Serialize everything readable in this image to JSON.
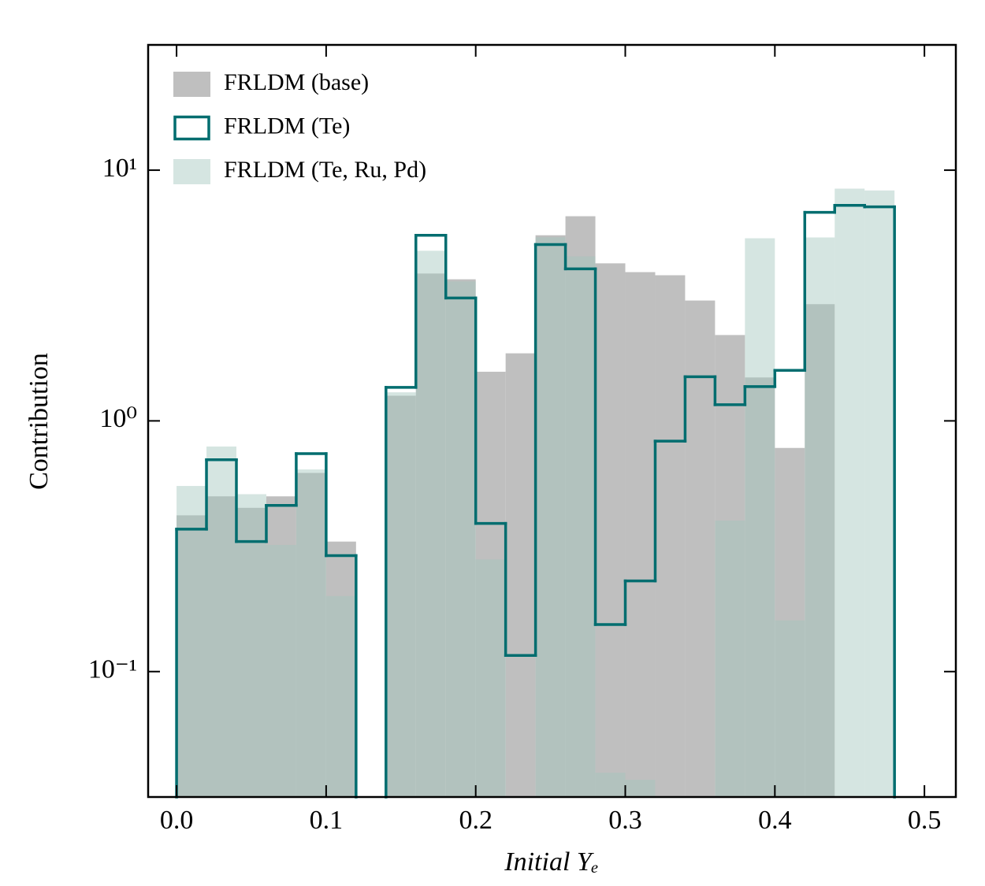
{
  "chart_data": {
    "type": "histogram",
    "xlabel": "Initial Yₑ",
    "ylabel": "Contribution",
    "bins": [
      0,
      0.02,
      0.04,
      0.06,
      0.08,
      0.1,
      0.12,
      0.14,
      0.16,
      0.18,
      0.2,
      0.22,
      0.24,
      0.26,
      0.28,
      0.3,
      0.32,
      0.34,
      0.36,
      0.38,
      0.4,
      0.42,
      0.44,
      0.46,
      0.48
    ],
    "series": [
      {
        "name": "FRLDM (base)",
        "color": "#bfbfbf",
        "histtype": "bar",
        "values": [
          0.42,
          0.5,
          0.45,
          0.5,
          0.62,
          0.33,
          null,
          1.26,
          3.87,
          3.67,
          1.57,
          1.86,
          5.5,
          6.55,
          4.25,
          3.92,
          3.81,
          3.02,
          2.2,
          1.49,
          0.78,
          2.92,
          null,
          null
        ]
      },
      {
        "name": "FRLDM (Te)",
        "color": "#006d6f",
        "histtype": "step",
        "values": [
          0.37,
          0.7,
          0.33,
          0.46,
          0.74,
          0.29,
          null,
          1.36,
          5.5,
          3.09,
          0.39,
          0.116,
          5.05,
          4.04,
          0.154,
          0.23,
          0.83,
          1.5,
          1.16,
          1.37,
          1.59,
          6.79,
          7.24,
          7.14
        ]
      },
      {
        "name": "FRLDM (Te, Ru, Pd)",
        "color": "#a2c5bc",
        "histtype": "bar",
        "values": [
          0.55,
          0.79,
          0.51,
          0.32,
          0.64,
          0.2,
          null,
          1.3,
          4.77,
          3.6,
          0.28,
          null,
          5.4,
          4.53,
          0.0395,
          0.037,
          null,
          null,
          0.4,
          5.35,
          0.16,
          5.39,
          8.44,
          8.3
        ]
      }
    ],
    "xlim": [
      -0.019,
      0.521
    ],
    "xticks": [
      {
        "value": 0,
        "label": "0.0"
      },
      0.1,
      0.2,
      0.3,
      0.4,
      0.5
    ],
    "ylim": [
      0.0316,
      31.6
    ],
    "yscale": "log",
    "yticks": [
      {
        "value": 0.1,
        "label": "10⁻¹"
      },
      {
        "value": 1,
        "label": "10⁰"
      },
      {
        "value": 10,
        "label": "10¹"
      }
    ],
    "legend": "upper left"
  }
}
